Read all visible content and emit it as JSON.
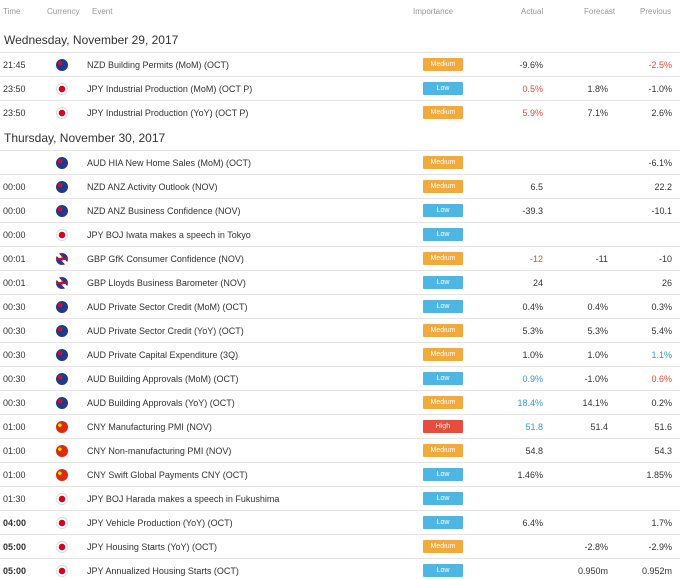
{
  "columns": {
    "time": "Time",
    "currency": "Currency",
    "event": "Event",
    "importance": "Importance",
    "actual": "Actual",
    "forecast": "Forecast",
    "previous": "Previous"
  },
  "days": [
    {
      "label": "Wednesday, November 29, 2017",
      "rows": [
        {
          "time": "21:45",
          "flag": "nzd",
          "event": "NZD Building Permits (MoM) (OCT)",
          "importance": "Medium",
          "actual": "-9.6%",
          "forecast": "",
          "previous": "-2.5%",
          "actual_color": "",
          "previous_color": "red"
        },
        {
          "time": "23:50",
          "flag": "jpy",
          "event": "JPY Industrial Production (MoM) (OCT P)",
          "importance": "Low",
          "actual": "0.5%",
          "forecast": "1.8%",
          "previous": "-1.0%",
          "actual_color": "red",
          "previous_color": ""
        },
        {
          "time": "23:50",
          "flag": "jpy",
          "event": "JPY Industrial Production (YoY) (OCT P)",
          "importance": "Medium",
          "actual": "5.9%",
          "forecast": "7.1%",
          "previous": "2.6%",
          "actual_color": "red",
          "previous_color": ""
        }
      ]
    },
    {
      "label": "Thursday, November 30, 2017",
      "rows": [
        {
          "time": "",
          "flag": "aud",
          "event": "AUD HIA New Home Sales (MoM) (OCT)",
          "importance": "Medium",
          "actual": "",
          "forecast": "",
          "previous": "-6.1%",
          "actual_color": "",
          "previous_color": ""
        },
        {
          "time": "00:00",
          "flag": "nzd",
          "event": "NZD ANZ Activity Outlook (NOV)",
          "importance": "Medium",
          "actual": "6.5",
          "forecast": "",
          "previous": "22.2",
          "actual_color": "",
          "previous_color": ""
        },
        {
          "time": "00:00",
          "flag": "nzd",
          "event": "NZD ANZ Business Confidence (NOV)",
          "importance": "Low",
          "actual": "-39.3",
          "forecast": "",
          "previous": "-10.1",
          "actual_color": "",
          "previous_color": ""
        },
        {
          "time": "00:00",
          "flag": "jpy",
          "event": "JPY BOJ Iwata makes a speech in Tokyo",
          "importance": "Low",
          "actual": "",
          "forecast": "",
          "previous": "",
          "actual_color": "",
          "previous_color": ""
        },
        {
          "time": "00:01",
          "flag": "gbp",
          "event": "GBP GfK Consumer Confidence (NOV)",
          "importance": "Medium",
          "actual": "-12",
          "forecast": "-11",
          "previous": "-10",
          "actual_color": "red",
          "previous_color": ""
        },
        {
          "time": "00:01",
          "flag": "gbp",
          "event": "GBP Lloyds Business Barometer (NOV)",
          "importance": "Low",
          "actual": "24",
          "forecast": "",
          "previous": "26",
          "actual_color": "",
          "previous_color": ""
        },
        {
          "time": "00:30",
          "flag": "aud",
          "event": "AUD Private Sector Credit (MoM) (OCT)",
          "importance": "Low",
          "actual": "0.4%",
          "forecast": "0.4%",
          "previous": "0.3%",
          "actual_color": "",
          "previous_color": ""
        },
        {
          "time": "00:30",
          "flag": "aud",
          "event": "AUD Private Sector Credit (YoY) (OCT)",
          "importance": "Medium",
          "actual": "5.3%",
          "forecast": "5.3%",
          "previous": "5.4%",
          "actual_color": "",
          "previous_color": ""
        },
        {
          "time": "00:30",
          "flag": "aud",
          "event": "AUD Private Capital Expenditure (3Q)",
          "importance": "Medium",
          "actual": "1.0%",
          "forecast": "1.0%",
          "previous": "1.1%",
          "actual_color": "",
          "previous_color": "blue"
        },
        {
          "time": "00:30",
          "flag": "aud",
          "event": "AUD Building Approvals (MoM) (OCT)",
          "importance": "Low",
          "actual": "0.9%",
          "forecast": "-1.0%",
          "previous": "0.6%",
          "actual_color": "blue",
          "previous_color": "red"
        },
        {
          "time": "00:30",
          "flag": "aud",
          "event": "AUD Building Approvals (YoY) (OCT)",
          "importance": "Medium",
          "actual": "18.4%",
          "forecast": "14.1%",
          "previous": "0.2%",
          "actual_color": "blue",
          "previous_color": ""
        },
        {
          "time": "01:00",
          "flag": "cny",
          "event": "CNY Manufacturing PMI (NOV)",
          "importance": "High",
          "actual": "51.8",
          "forecast": "51.4",
          "previous": "51.6",
          "actual_color": "blue",
          "previous_color": ""
        },
        {
          "time": "01:00",
          "flag": "cny",
          "event": "CNY Non-manufacturing PMI (NOV)",
          "importance": "Medium",
          "actual": "54.8",
          "forecast": "",
          "previous": "54.3",
          "actual_color": "",
          "previous_color": ""
        },
        {
          "time": "01:00",
          "flag": "cny",
          "event": "CNY Swift Global Payments CNY (OCT)",
          "importance": "Low",
          "actual": "1.46%",
          "forecast": "",
          "previous": "1.85%",
          "actual_color": "",
          "previous_color": ""
        },
        {
          "time": "01:30",
          "flag": "jpy",
          "event": "JPY BOJ Harada makes a speech in Fukushima",
          "importance": "Low",
          "actual": "",
          "forecast": "",
          "previous": "",
          "actual_color": "",
          "previous_color": ""
        },
        {
          "time": "04:00",
          "flag": "jpy",
          "event": "JPY Vehicle Production (YoY) (OCT)",
          "importance": "Low",
          "actual": "6.4%",
          "forecast": "",
          "previous": "1.7%",
          "actual_color": "",
          "previous_color": "",
          "bold_time": true
        },
        {
          "time": "05:00",
          "flag": "jpy",
          "event": "JPY Housing Starts (YoY) (OCT)",
          "importance": "Medium",
          "actual": "",
          "forecast": "-2.8%",
          "previous": "-2.9%",
          "actual_color": "",
          "previous_color": "",
          "bold_time": true
        },
        {
          "time": "05:00",
          "flag": "jpy",
          "event": "JPY Annualized Housing Starts (OCT)",
          "importance": "Low",
          "actual": "",
          "forecast": "0.950m",
          "previous": "0.952m",
          "actual_color": "",
          "previous_color": "",
          "bold_time": true
        }
      ]
    }
  ],
  "colors": {
    "medium": "#f4a93c",
    "low": "#4db6e3",
    "high": "#e74c3c",
    "negative": "#e74c3c",
    "positive": "#3399dd"
  }
}
